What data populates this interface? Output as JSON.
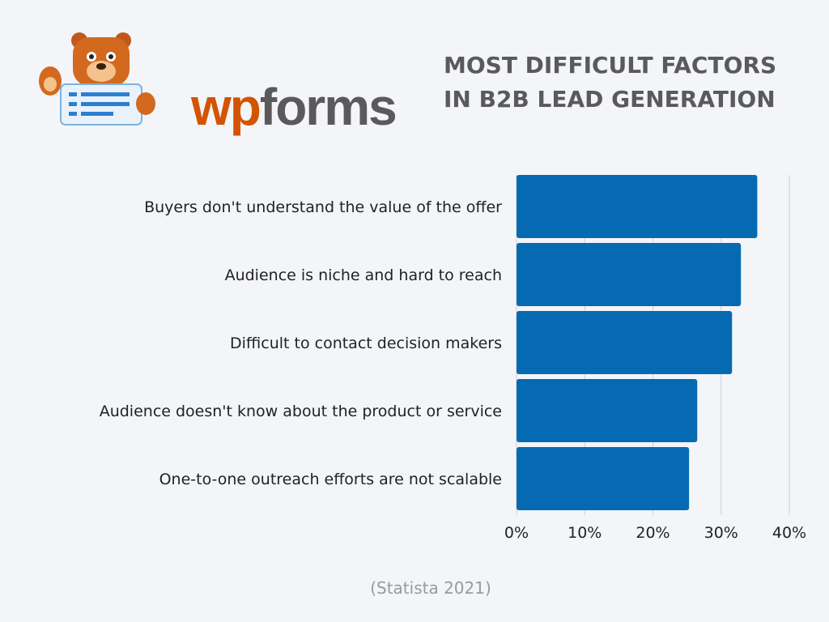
{
  "logo": {
    "text": "wpforms",
    "part1": "wp",
    "part2": "forms",
    "mascot": "bear-mascot",
    "colors": {
      "wp": "#d35400",
      "forms": "#5a5a5a"
    }
  },
  "title_line1": "MOST DIFFICULT FACTORS",
  "title_line2": "IN B2B LEAD GENERATION",
  "source": "(Statista 2021)",
  "chart_data": {
    "type": "bar",
    "orientation": "horizontal",
    "title": "MOST DIFFICULT FACTORS IN B2B LEAD GENERATION",
    "categories": [
      "Buyers don't understand the value of the offer",
      "Audience is niche and hard to reach",
      "Difficult to contact decision makers",
      "Audience doesn't know about the product or service",
      "One-to-one outreach efforts are not scalable"
    ],
    "values": [
      35.3,
      32.9,
      31.6,
      26.5,
      25.3
    ],
    "unit": "%",
    "xlim": [
      0,
      40
    ],
    "xticks": [
      "0%",
      "10%",
      "20%",
      "30%",
      "40%"
    ],
    "grid": true,
    "legend": "none",
    "bar_color": "#066ab2",
    "grid_color": "#cfcfcf"
  }
}
